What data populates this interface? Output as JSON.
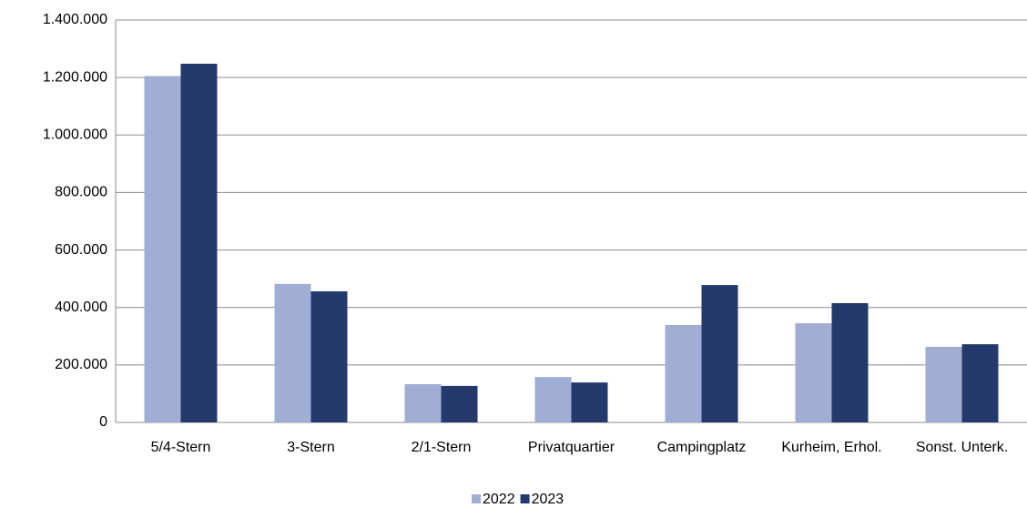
{
  "chart_data": {
    "type": "bar",
    "categories": [
      "5/4-Stern",
      "3-Stern",
      "2/1-Stern",
      "Privatquartier",
      "Campingplatz",
      "Kurheim, Erhol.",
      "Sonst. Unterk."
    ],
    "series": [
      {
        "name": "2022",
        "color": "#a0aed3",
        "values": [
          1205000,
          482000,
          133000,
          158000,
          339000,
          345000,
          263000
        ]
      },
      {
        "name": "2023",
        "color": "#243a6c",
        "values": [
          1248000,
          456000,
          127000,
          139000,
          478000,
          415000,
          272000
        ]
      }
    ],
    "ylim": [
      0,
      1400000
    ],
    "yticks": [
      0,
      {
        "value": 200000,
        "label": "200.000"
      },
      {
        "value": 400000,
        "label": "400.000"
      },
      {
        "value": 600000,
        "label": "600.000"
      },
      {
        "value": 800000,
        "label": "800.000"
      },
      {
        "value": 1000000,
        "label": "1.000.000"
      },
      {
        "value": 1200000,
        "label": "1.200.000"
      },
      {
        "value": 1400000,
        "label": "1.400.000"
      }
    ],
    "grid": true,
    "legend": "bottom"
  }
}
